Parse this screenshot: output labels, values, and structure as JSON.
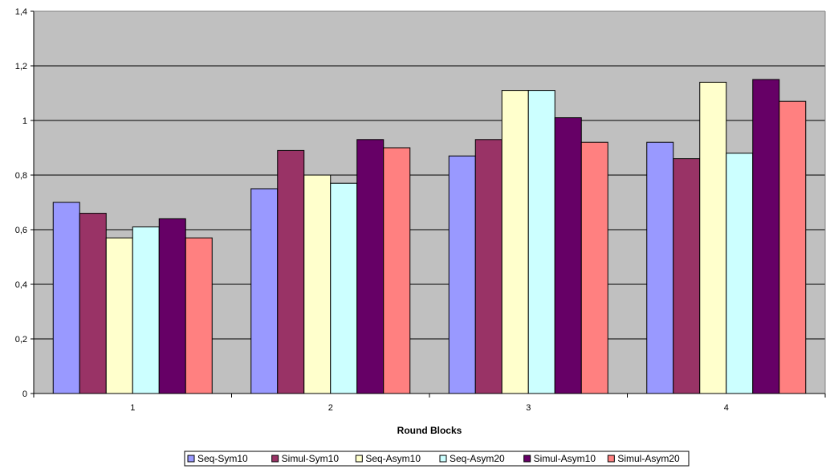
{
  "chart_data": {
    "type": "bar",
    "title": "",
    "xlabel": "Round Blocks",
    "ylabel": "",
    "categories": [
      "1",
      "2",
      "3",
      "4"
    ],
    "ylim": [
      0,
      1.4
    ],
    "yticks": [
      "0",
      "0,2",
      "0,4",
      "0,6",
      "0,8",
      "1",
      "1,2",
      "1,4"
    ],
    "grid": true,
    "legend_position": "bottom",
    "plot_background": "#c0c0c0",
    "series": [
      {
        "name": "Seq-Sym10",
        "color": "#9999ff",
        "values": [
          0.7,
          0.75,
          0.87,
          0.92
        ]
      },
      {
        "name": "Simul-Sym10",
        "color": "#993366",
        "values": [
          0.66,
          0.89,
          0.93,
          0.86
        ]
      },
      {
        "name": "Seq-Asym10",
        "color": "#ffffcc",
        "values": [
          0.57,
          0.8,
          1.11,
          1.14
        ]
      },
      {
        "name": "Seq-Asym20",
        "color": "#ccffff",
        "values": [
          0.61,
          0.77,
          1.11,
          0.88
        ]
      },
      {
        "name": "Simul-Asym10",
        "color": "#660066",
        "values": [
          0.64,
          0.93,
          1.01,
          1.15
        ]
      },
      {
        "name": "Simul-Asym20",
        "color": "#ff8080",
        "values": [
          0.57,
          0.9,
          0.92,
          1.07
        ]
      }
    ]
  }
}
